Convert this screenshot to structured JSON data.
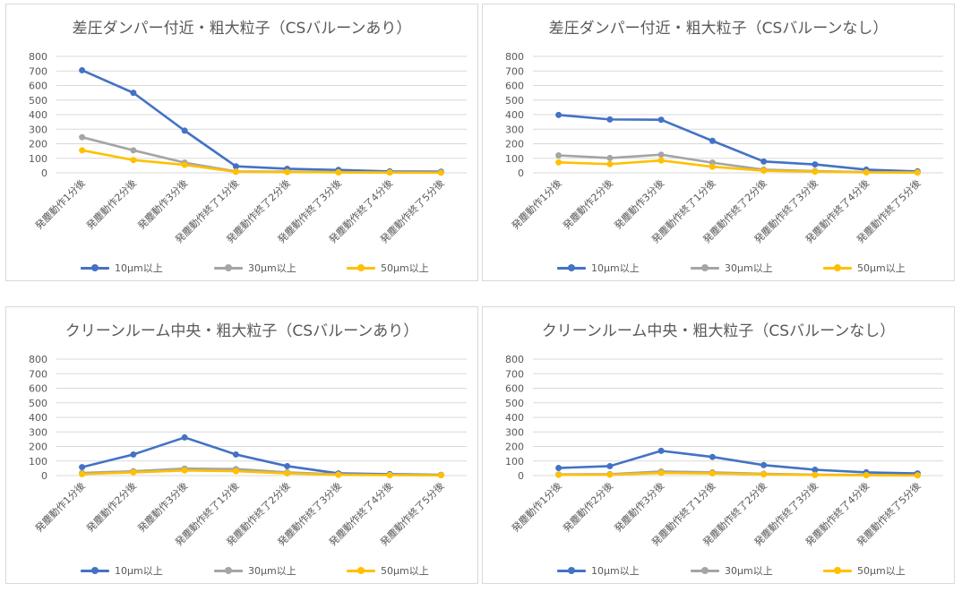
{
  "chart_data": [
    {
      "type": "line",
      "title": "差圧ダンパー付近・粗大粒子（CSバルーンあり）",
      "categories": [
        "発塵動作1分後",
        "発塵動作2分後",
        "発塵動作3分後",
        "発塵動作終了1分後",
        "発塵動作終了2分後",
        "発塵動作終了3分後",
        "発塵動作終了4分後",
        "発塵動作終了5分後"
      ],
      "ylim": [
        0,
        800
      ],
      "yticks": [
        0,
        100,
        200,
        300,
        400,
        500,
        600,
        700,
        800
      ],
      "grid": true,
      "legend_position": "bottom",
      "series": [
        {
          "name": "10μm以上",
          "color": "#4472c4",
          "values": [
            705,
            550,
            290,
            45,
            28,
            20,
            10,
            8
          ]
        },
        {
          "name": "30μm以上",
          "color": "#a5a5a5",
          "values": [
            245,
            155,
            70,
            10,
            8,
            5,
            3,
            2
          ]
        },
        {
          "name": "50μm以上",
          "color": "#ffc000",
          "values": [
            155,
            88,
            55,
            7,
            5,
            3,
            2,
            1
          ]
        }
      ]
    },
    {
      "type": "line",
      "title": "差圧ダンパー付近・粗大粒子（CSバルーンなし）",
      "categories": [
        "発塵動作1分後",
        "発塵動作2分後",
        "発塵動作3分後",
        "発塵動作終了1分後",
        "発塵動作終了2分後",
        "発塵動作終了3分後",
        "発塵動作終了4分後",
        "発塵動作終了5分後"
      ],
      "ylim": [
        0,
        800
      ],
      "yticks": [
        0,
        100,
        200,
        300,
        400,
        500,
        600,
        700,
        800
      ],
      "grid": true,
      "legend_position": "bottom",
      "series": [
        {
          "name": "10μm以上",
          "color": "#4472c4",
          "values": [
            398,
            367,
            365,
            220,
            78,
            58,
            22,
            10
          ]
        },
        {
          "name": "30μm以上",
          "color": "#a5a5a5",
          "values": [
            120,
            102,
            125,
            70,
            22,
            12,
            5,
            3
          ]
        },
        {
          "name": "50μm以上",
          "color": "#ffc000",
          "values": [
            72,
            60,
            85,
            42,
            15,
            8,
            3,
            2
          ]
        }
      ]
    },
    {
      "type": "line",
      "title": "クリーンルーム中央・粗大粒子（CSバルーンあり）",
      "categories": [
        "発塵動作1分後",
        "発塵動作2分後",
        "発塵動作3分後",
        "発塵動作終了1分後",
        "発塵動作終了2分後",
        "発塵動作終了3分後",
        "発塵動作終了4分後",
        "発塵動作終了5分後"
      ],
      "ylim": [
        0,
        800
      ],
      "yticks": [
        0,
        100,
        200,
        300,
        400,
        500,
        600,
        700,
        800
      ],
      "grid": true,
      "legend_position": "bottom",
      "series": [
        {
          "name": "10μm以上",
          "color": "#4472c4",
          "values": [
            58,
            145,
            262,
            145,
            65,
            15,
            10,
            5
          ]
        },
        {
          "name": "30μm以上",
          "color": "#a5a5a5",
          "values": [
            18,
            30,
            48,
            45,
            22,
            8,
            5,
            3
          ]
        },
        {
          "name": "50μm以上",
          "color": "#ffc000",
          "values": [
            10,
            22,
            35,
            30,
            15,
            5,
            3,
            2
          ]
        }
      ]
    },
    {
      "type": "line",
      "title": "クリーンルーム中央・粗大粒子（CSバルーンなし）",
      "categories": [
        "発塵動作1分後",
        "発塵動作2分後",
        "発塵動作3分後",
        "発塵動作終了1分後",
        "発塵動作終了2分後",
        "発塵動作終了3分後",
        "発塵動作終了4分後",
        "発塵動作終了5分後"
      ],
      "ylim": [
        0,
        800
      ],
      "yticks": [
        0,
        100,
        200,
        300,
        400,
        500,
        600,
        700,
        800
      ],
      "grid": true,
      "legend_position": "bottom",
      "series": [
        {
          "name": "10μm以上",
          "color": "#4472c4",
          "values": [
            52,
            65,
            170,
            128,
            72,
            40,
            22,
            15
          ]
        },
        {
          "name": "30μm以上",
          "color": "#a5a5a5",
          "values": [
            8,
            10,
            28,
            22,
            12,
            6,
            4,
            2
          ]
        },
        {
          "name": "50μm以上",
          "color": "#ffc000",
          "values": [
            5,
            6,
            18,
            15,
            8,
            4,
            2,
            1
          ]
        }
      ]
    }
  ]
}
